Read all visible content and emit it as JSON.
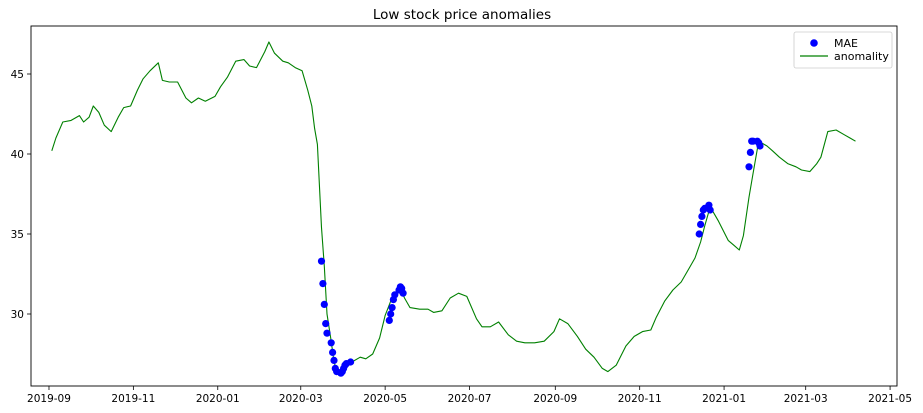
{
  "chart_data": {
    "type": "line",
    "title": "Low stock price anomalies",
    "xlabel": "",
    "ylabel": "",
    "x_ticks": [
      "2019-09",
      "2019-11",
      "2020-01",
      "2020-03",
      "2020-05",
      "2020-07",
      "2020-09",
      "2020-11",
      "2021-01",
      "2021-03",
      "2021-05"
    ],
    "y_ticks": [
      30,
      35,
      40,
      45
    ],
    "xlim": [
      "2019-08-19",
      "2021-05-06"
    ],
    "ylim": [
      25.5,
      48.0
    ],
    "grid": false,
    "legend_position": "top-right",
    "colors": {
      "line": "#008000",
      "markers": "#0000ff",
      "axes": "#000000"
    },
    "series": [
      {
        "name": "anomality",
        "kind": "line",
        "x": [
          "2019-09-03",
          "2019-09-06",
          "2019-09-11",
          "2019-09-17",
          "2019-09-23",
          "2019-09-26",
          "2019-09-30",
          "2019-10-03",
          "2019-10-07",
          "2019-10-11",
          "2019-10-16",
          "2019-10-21",
          "2019-10-25",
          "2019-10-30",
          "2019-11-04",
          "2019-11-08",
          "2019-11-13",
          "2019-11-19",
          "2019-11-22",
          "2019-11-27",
          "2019-12-03",
          "2019-12-09",
          "2019-12-13",
          "2019-12-18",
          "2019-12-23",
          "2019-12-30",
          "2020-01-03",
          "2020-01-08",
          "2020-01-14",
          "2020-01-20",
          "2020-01-24",
          "2020-01-29",
          "2020-02-04",
          "2020-02-07",
          "2020-02-11",
          "2020-02-17",
          "2020-02-21",
          "2020-02-26",
          "2020-03-02",
          "2020-03-06",
          "2020-03-09",
          "2020-03-11",
          "2020-03-13",
          "2020-03-16",
          "2020-03-18",
          "2020-03-20",
          "2020-03-23",
          "2020-03-25",
          "2020-03-27",
          "2020-03-30",
          "2020-04-01",
          "2020-04-03",
          "2020-04-07",
          "2020-04-13",
          "2020-04-17",
          "2020-04-22",
          "2020-04-27",
          "2020-05-01",
          "2020-05-05",
          "2020-05-08",
          "2020-05-12",
          "2020-05-15",
          "2020-05-19",
          "2020-05-26",
          "2020-06-01",
          "2020-06-05",
          "2020-06-11",
          "2020-06-17",
          "2020-06-23",
          "2020-06-29",
          "2020-07-06",
          "2020-07-10",
          "2020-07-16",
          "2020-07-22",
          "2020-07-29",
          "2020-08-04",
          "2020-08-10",
          "2020-08-17",
          "2020-08-24",
          "2020-08-31",
          "2020-09-04",
          "2020-09-10",
          "2020-09-17",
          "2020-09-23",
          "2020-09-29",
          "2020-10-05",
          "2020-10-09",
          "2020-10-15",
          "2020-10-22",
          "2020-10-28",
          "2020-11-03",
          "2020-11-09",
          "2020-11-13",
          "2020-11-19",
          "2020-11-25",
          "2020-12-01",
          "2020-12-07",
          "2020-12-11",
          "2020-12-15",
          "2020-12-18",
          "2020-12-22",
          "2020-12-28",
          "2021-01-04",
          "2021-01-08",
          "2021-01-12",
          "2021-01-15",
          "2021-01-19",
          "2021-01-22",
          "2021-01-26",
          "2021-02-01",
          "2021-02-05",
          "2021-02-10",
          "2021-02-16",
          "2021-02-22",
          "2021-02-26",
          "2021-03-04",
          "2021-03-09",
          "2021-03-12",
          "2021-03-17",
          "2021-03-23",
          "2021-03-29",
          "2021-04-02",
          "2021-04-06"
        ],
        "y": [
          40.2,
          41.0,
          42.0,
          42.1,
          42.4,
          42.0,
          42.3,
          43.0,
          42.6,
          41.8,
          41.4,
          42.3,
          42.9,
          43.0,
          44.0,
          44.7,
          45.2,
          45.7,
          44.6,
          44.5,
          44.5,
          43.5,
          43.2,
          43.5,
          43.3,
          43.6,
          44.2,
          44.8,
          45.8,
          45.9,
          45.5,
          45.4,
          46.4,
          47.0,
          46.3,
          45.8,
          45.7,
          45.4,
          45.2,
          44.0,
          43.0,
          41.6,
          40.6,
          35.4,
          33.0,
          30.0,
          28.3,
          27.0,
          26.5,
          26.4,
          26.5,
          26.9,
          27.0,
          27.3,
          27.2,
          27.5,
          28.5,
          29.9,
          30.8,
          31.3,
          31.6,
          31.0,
          30.4,
          30.3,
          30.3,
          30.1,
          30.2,
          31.0,
          31.3,
          31.1,
          29.7,
          29.2,
          29.2,
          29.5,
          28.7,
          28.3,
          28.2,
          28.2,
          28.3,
          28.9,
          29.7,
          29.4,
          28.6,
          27.8,
          27.3,
          26.6,
          26.4,
          26.8,
          28.0,
          28.6,
          28.9,
          29.0,
          29.8,
          30.8,
          31.5,
          32.0,
          32.9,
          33.5,
          34.5,
          35.5,
          36.7,
          35.8,
          34.6,
          34.3,
          34.0,
          34.9,
          37.3,
          38.8,
          40.8,
          40.5,
          40.2,
          39.8,
          39.4,
          39.2,
          39.0,
          38.9,
          39.4,
          39.8,
          41.4,
          41.5,
          41.2,
          41.0,
          40.8
        ]
      },
      {
        "name": "MAE",
        "kind": "markers",
        "x": [
          "2020-03-16",
          "2020-03-17",
          "2020-03-18",
          "2020-03-19",
          "2020-03-20",
          "2020-03-23",
          "2020-03-24",
          "2020-03-25",
          "2020-03-26",
          "2020-03-27",
          "2020-03-30",
          "2020-03-31",
          "2020-04-01",
          "2020-04-02",
          "2020-04-03",
          "2020-04-06",
          "2020-05-04",
          "2020-05-05",
          "2020-05-06",
          "2020-05-07",
          "2020-05-08",
          "2020-05-11",
          "2020-05-12",
          "2020-05-13",
          "2020-05-14",
          "2020-12-14",
          "2020-12-15",
          "2020-12-16",
          "2020-12-17",
          "2020-12-18",
          "2020-12-21",
          "2020-12-22",
          "2021-01-19",
          "2021-01-20",
          "2021-01-21",
          "2021-01-22",
          "2021-01-25",
          "2021-01-26",
          "2021-01-27"
        ],
        "y": [
          33.3,
          31.9,
          30.6,
          29.4,
          28.8,
          28.2,
          27.6,
          27.1,
          26.6,
          26.4,
          26.3,
          26.4,
          26.6,
          26.8,
          26.9,
          27.0,
          29.6,
          30.0,
          30.4,
          30.9,
          31.2,
          31.5,
          31.7,
          31.6,
          31.3,
          35.0,
          35.6,
          36.1,
          36.5,
          36.6,
          36.8,
          36.5,
          39.2,
          40.1,
          40.8,
          40.8,
          40.8,
          40.7,
          40.5
        ]
      }
    ]
  }
}
